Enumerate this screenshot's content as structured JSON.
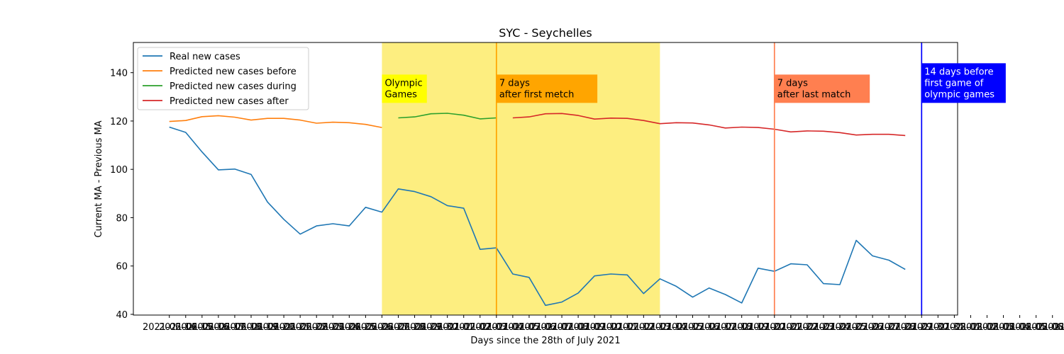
{
  "chart_data": {
    "type": "line",
    "title": "SYC - Seychelles",
    "xlabel": "Days since the 28th of July 2021",
    "ylabel": "Current MA - Previous MA",
    "xlim": [
      -2.2,
      48.2
    ],
    "ylim": [
      39.7,
      152.5
    ],
    "y_ticks": [
      40,
      60,
      80,
      100,
      120,
      140
    ],
    "x_tick_labels": [
      "2021-06-14",
      "2021-06-15",
      "2021-06-16",
      "2021-06-17",
      "2021-06-18",
      "2021-06-19",
      "2021-06-20",
      "2021-06-21",
      "2021-06-22",
      "2021-06-23",
      "2021-06-24",
      "2021-06-25",
      "2021-06-26",
      "2021-06-27",
      "2021-06-28",
      "2021-06-29",
      "2021-06-30",
      "2021-07-01",
      "2021-07-02",
      "2021-07-03",
      "2021-07-04",
      "2021-07-05",
      "2021-07-06",
      "2021-07-07",
      "2021-07-08",
      "2021-07-09",
      "2021-07-10",
      "2021-07-11",
      "2021-07-12",
      "2021-07-13",
      "2021-07-14",
      "2021-07-15",
      "2021-07-16",
      "2021-07-17",
      "2021-07-18",
      "2021-07-19",
      "2021-07-20",
      "2021-07-21",
      "2021-07-22",
      "2021-07-23",
      "2021-07-24",
      "2021-07-25",
      "2021-07-26",
      "2021-07-27",
      "2021-07-28",
      "2021-07-29",
      "2021-07-30",
      "2021-07-31",
      "2021-08-01",
      "2021-08-02",
      "2021-08-03",
      "2021-08-04",
      "2021-08-05",
      "2021-08-06",
      "2021-08-07",
      "2021-08-08"
    ],
    "legend_position": "upper-left",
    "series": [
      {
        "name": "Real new cases",
        "color": "#1f77b4",
        "x": [
          0,
          1,
          2,
          3,
          4,
          5,
          6,
          7,
          8,
          9,
          10,
          11,
          12,
          13,
          14,
          15,
          16,
          17,
          18,
          19,
          20,
          21,
          22,
          23,
          24,
          25,
          26,
          27,
          28,
          29,
          30,
          31,
          32,
          33,
          34,
          35,
          36,
          37,
          38,
          39,
          40,
          41,
          42,
          43,
          44,
          45
        ],
        "y": [
          117.5,
          115.3,
          107.2,
          99.8,
          100.1,
          97.9,
          86.5,
          79.3,
          73.2,
          76.6,
          77.5,
          76.6,
          84.3,
          82.3,
          91.9,
          90.8,
          88.7,
          85.0,
          83.9,
          66.9,
          67.5,
          56.7,
          55.3,
          43.7,
          45.1,
          48.8,
          55.9,
          56.7,
          56.3,
          48.6,
          54.7,
          51.6,
          47.1,
          50.9,
          48.2,
          44.7,
          59.1,
          57.8,
          60.9,
          60.5,
          52.7,
          52.3,
          70.6,
          64.2,
          62.4,
          58.6
        ]
      },
      {
        "name": "Predicted new cases before",
        "color": "#ff7f0e",
        "x": [
          0,
          1,
          2,
          3,
          4,
          5,
          6,
          7,
          8,
          9,
          10,
          11,
          12,
          13
        ],
        "y": [
          119.8,
          120.2,
          121.8,
          122.2,
          121.6,
          120.4,
          121.1,
          121.1,
          120.4,
          119.1,
          119.5,
          119.3,
          118.6,
          117.3
        ]
      },
      {
        "name": "Predicted new cases during",
        "color": "#2ca02c",
        "x": [
          14,
          15,
          16,
          17,
          18,
          19,
          20
        ],
        "y": [
          121.3,
          121.7,
          123.0,
          123.2,
          122.4,
          120.9,
          121.3
        ]
      },
      {
        "name": "Predicted new cases after",
        "color": "#d62728",
        "x": [
          21,
          22,
          23,
          24,
          25,
          26,
          27,
          28,
          29,
          30,
          31,
          32,
          33,
          34,
          35,
          36,
          37,
          38,
          39,
          40,
          41,
          42,
          43,
          44,
          45
        ],
        "y": [
          121.3,
          121.7,
          123.0,
          123.1,
          122.3,
          120.8,
          121.2,
          121.1,
          120.2,
          118.9,
          119.3,
          119.2,
          118.4,
          117.1,
          117.5,
          117.3,
          116.6,
          115.5,
          115.9,
          115.8,
          115.2,
          114.2,
          114.5,
          114.5,
          114.0
        ]
      }
    ],
    "shaded_regions": [
      {
        "x_start": 13,
        "x_end": 30,
        "color": "#fdee80"
      }
    ],
    "vertical_lines": [
      {
        "x": 20,
        "color": "#ffa500"
      },
      {
        "x": 37,
        "color": "#ff7f50"
      },
      {
        "x": 46,
        "color": "#0000ff"
      }
    ],
    "annotations": [
      {
        "lines": [
          "Olympic",
          "Games"
        ],
        "x": 13,
        "y": 127.5,
        "bg": "#ffff00",
        "fg": "#000000"
      },
      {
        "lines": [
          "7 days",
          "after first metch"
        ],
        "x": 20,
        "y": 127.5,
        "bg": "#ffa500",
        "fg": "#000000"
      },
      {
        "lines": [
          "7 days",
          "after last match"
        ],
        "x": 37,
        "y": 127.5,
        "bg": "#ff7f50",
        "fg": "#000000"
      },
      {
        "lines": [
          "14 days before",
          "first game of",
          "olympic games"
        ],
        "x": 46,
        "y": 127.5,
        "bg": "#0000ff",
        "fg": "#ffffff"
      }
    ]
  }
}
